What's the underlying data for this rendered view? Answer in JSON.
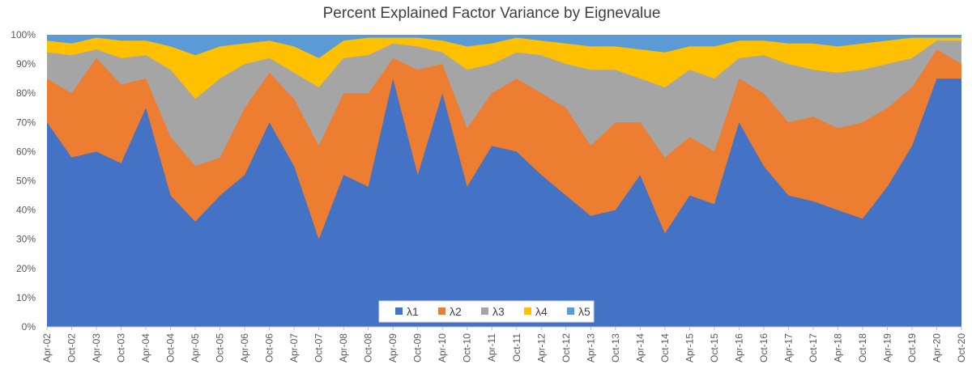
{
  "chart_data": {
    "type": "area",
    "stacked": true,
    "percent_stacked": true,
    "title": "Percent Explained Factor Variance by Eignevalue",
    "xlabel": "",
    "ylabel": "",
    "ylim": [
      0,
      100
    ],
    "y_tick_labels": [
      "0%",
      "10%",
      "20%",
      "30%",
      "40%",
      "50%",
      "60%",
      "70%",
      "80%",
      "90%",
      "100%"
    ],
    "x_tick_labels": [
      "Apr-02",
      "Oct-02",
      "Apr-03",
      "Oct-03",
      "Apr-04",
      "Oct-04",
      "Apr-05",
      "Oct-05",
      "Apr-06",
      "Oct-06",
      "Apr-07",
      "Oct-07",
      "Apr-08",
      "Oct-08",
      "Apr-09",
      "Oct-09",
      "Apr-10",
      "Oct-10",
      "Apr-11",
      "Oct-11",
      "Apr-12",
      "Oct-12",
      "Apr-13",
      "Oct-13",
      "Apr-14",
      "Oct-14",
      "Apr-15",
      "Oct-15",
      "Apr-16",
      "Oct-16",
      "Apr-17",
      "Oct-17",
      "Apr-18",
      "Oct-18",
      "Apr-19",
      "Oct-19",
      "Apr-20",
      "Oct-20"
    ],
    "grid": false,
    "legend_position": "bottom-center",
    "x": [
      "Apr-02",
      "Oct-02",
      "Apr-03",
      "Oct-03",
      "Apr-04",
      "Oct-04",
      "Apr-05",
      "Oct-05",
      "Apr-06",
      "Oct-06",
      "Apr-07",
      "Oct-07",
      "Apr-08",
      "Oct-08",
      "Apr-09",
      "Oct-09",
      "Apr-10",
      "Oct-10",
      "Apr-11",
      "Oct-11",
      "Apr-12",
      "Oct-12",
      "Apr-13",
      "Oct-13",
      "Apr-14",
      "Oct-14",
      "Apr-15",
      "Oct-15",
      "Apr-16",
      "Oct-16",
      "Apr-17",
      "Oct-17",
      "Apr-18",
      "Oct-18",
      "Apr-19",
      "Oct-19",
      "Apr-20",
      "Oct-20"
    ],
    "cumulative": true,
    "series": [
      {
        "name": "λ1",
        "color": "#4472C4",
        "values": [
          70,
          58,
          60,
          56,
          75,
          45,
          36,
          45,
          52,
          70,
          55,
          30,
          52,
          48,
          85,
          52,
          80,
          48,
          62,
          60,
          52,
          45,
          38,
          40,
          52,
          32,
          45,
          42,
          70,
          55,
          45,
          43,
          40,
          37,
          48,
          62,
          85,
          85
        ]
      },
      {
        "name": "λ2",
        "color": "#ED7D31",
        "values": [
          85,
          80,
          92,
          83,
          85,
          65,
          55,
          58,
          75,
          87,
          78,
          62,
          80,
          80,
          92,
          88,
          90,
          68,
          80,
          85,
          80,
          75,
          62,
          70,
          70,
          58,
          65,
          60,
          85,
          80,
          70,
          72,
          68,
          70,
          75,
          82,
          95,
          90
        ]
      },
      {
        "name": "λ3",
        "color": "#A5A5A5",
        "values": [
          94,
          93,
          95,
          92,
          93,
          88,
          78,
          85,
          90,
          92,
          87,
          82,
          92,
          93,
          97,
          96,
          94,
          88,
          90,
          94,
          93,
          90,
          88,
          88,
          85,
          82,
          88,
          85,
          92,
          93,
          90,
          88,
          87,
          88,
          90,
          92,
          98,
          98
        ]
      },
      {
        "name": "λ4",
        "color": "#FFC000",
        "values": [
          98,
          97,
          99,
          98,
          98,
          96,
          93,
          96,
          97,
          98,
          96,
          92,
          98,
          99,
          99,
          99,
          98,
          96,
          97,
          99,
          98,
          97,
          96,
          96,
          95,
          94,
          96,
          96,
          98,
          98,
          97,
          97,
          96,
          97,
          98,
          99,
          99,
          99
        ]
      },
      {
        "name": "λ5",
        "color": "#5B9BD5",
        "values": [
          100,
          100,
          100,
          100,
          100,
          100,
          100,
          100,
          100,
          100,
          100,
          100,
          100,
          100,
          100,
          100,
          100,
          100,
          100,
          100,
          100,
          100,
          100,
          100,
          100,
          100,
          100,
          100,
          100,
          100,
          100,
          100,
          100,
          100,
          100,
          100,
          100,
          100
        ]
      }
    ]
  }
}
